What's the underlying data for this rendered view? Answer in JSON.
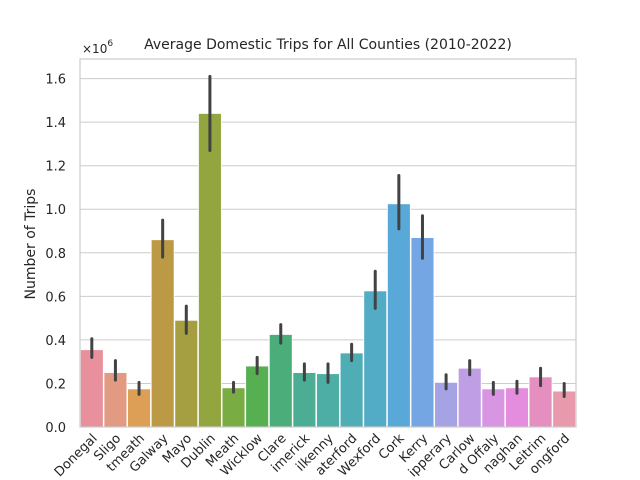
{
  "chart_data": {
    "type": "bar",
    "title": "Average Domestic Trips for All Counties (2010-2022)",
    "xlabel": "",
    "ylabel": "Number of Trips",
    "scale_label": "×10",
    "scale_exponent": "6",
    "multiplier": 1000000,
    "ylim": [
      0,
      1.69
    ],
    "yticks": [
      "0.0",
      "0.2",
      "0.4",
      "0.6",
      "0.8",
      "1.0",
      "1.2",
      "1.4",
      "1.6"
    ],
    "ytick_values": [
      0,
      0.2,
      0.4,
      0.6,
      0.8,
      1.0,
      1.2,
      1.4,
      1.6
    ],
    "grid": true,
    "categories": [
      "Donegal",
      "Sligo",
      "Westmeath",
      "Galway",
      "Mayo",
      "Dublin",
      "Meath",
      "Wicklow",
      "Clare",
      "Limerick",
      "Kilkenny",
      "Waterford",
      "Wexford",
      "Cork",
      "Kerry",
      "Tipperary",
      "Carlow",
      "Offaly",
      "Monaghan",
      "Leitrim",
      "Longford"
    ],
    "tick_labels": [
      "Donegal",
      "Sligo",
      "tmeath",
      "Galway",
      "Mayo",
      "Dublin",
      "Meath",
      "Wicklow",
      "Clare",
      "imerick",
      "ilkenny",
      "aterford",
      "Wexford",
      "Cork",
      "Kerry",
      "ipperary",
      "Carlow",
      "d Offaly",
      "naghan",
      "Leitrim",
      "ongford"
    ],
    "values": [
      0.355,
      0.25,
      0.175,
      0.86,
      0.49,
      1.44,
      0.18,
      0.28,
      0.425,
      0.25,
      0.245,
      0.34,
      0.625,
      1.025,
      0.87,
      0.205,
      0.27,
      0.175,
      0.18,
      0.23,
      0.165
    ],
    "error_low": [
      0.32,
      0.215,
      0.15,
      0.78,
      0.43,
      1.27,
      0.16,
      0.245,
      0.385,
      0.215,
      0.205,
      0.305,
      0.545,
      0.91,
      0.775,
      0.175,
      0.24,
      0.15,
      0.155,
      0.19,
      0.14
    ],
    "error_high": [
      0.405,
      0.305,
      0.205,
      0.95,
      0.555,
      1.61,
      0.205,
      0.32,
      0.47,
      0.29,
      0.29,
      0.38,
      0.715,
      1.155,
      0.97,
      0.24,
      0.305,
      0.205,
      0.21,
      0.27,
      0.2
    ],
    "colors": [
      "#e8909c",
      "#e29b82",
      "#dd9f55",
      "#bc9a45",
      "#a59f42",
      "#93a53e",
      "#79ad43",
      "#56b051",
      "#4aad7a",
      "#4bad94",
      "#4daea5",
      "#4fadb5",
      "#52acc6",
      "#59a9d8",
      "#73a6e2",
      "#a6a3e5",
      "#c09ee5",
      "#d795e2",
      "#e48cdd",
      "#e48fc0",
      "#e89aac"
    ]
  }
}
